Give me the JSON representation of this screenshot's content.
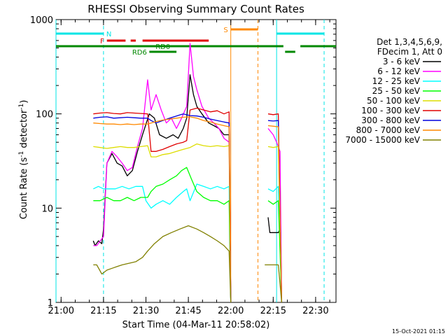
{
  "chart_data": {
    "type": "line",
    "title": "RHESSI Observing Summary Count Rates",
    "xlabel": "Start Time (04-Mar-11 20:58:02)",
    "ylabel_main": "Count Rate (s",
    "ylabel_sup": "-1",
    "ylabel_rest": " detector",
    "ylabel_sup2": "-1",
    "ylabel_close": ")",
    "yscale": "log",
    "xlim_minutes": [
      20.97,
      22.62
    ],
    "ylim": [
      1,
      1000
    ],
    "x_ticks": [
      "21:00",
      "21:15",
      "21:30",
      "21:45",
      "22:00",
      "22:15",
      "22:30"
    ],
    "x_tick_hours": [
      21.0,
      21.25,
      21.5,
      21.75,
      22.0,
      22.25,
      22.5
    ],
    "y_ticks": [
      "1",
      "10",
      "100",
      "1000"
    ],
    "y_tick_values": [
      1,
      10,
      100,
      1000
    ],
    "footer_date": "15-Oct-2021 01:15",
    "legend": {
      "header1": "Det 1,3,4,5,6,9,",
      "header2": "FDecim 1, Att 0",
      "placement": "right"
    },
    "flags": [
      {
        "label": "N",
        "color": "#00e5e5",
        "segments": [
          [
            20.97,
            21.25
          ],
          [
            22.27,
            22.55
          ]
        ],
        "level": 1
      },
      {
        "label": "F",
        "color": "#e00000",
        "segments": [
          [
            21.27,
            21.38
          ],
          [
            21.41,
            21.44
          ],
          [
            21.48,
            21.87
          ]
        ],
        "level": 2
      },
      {
        "label": "S",
        "color": "#ff8800",
        "segments": [
          [
            22.0,
            22.16
          ]
        ],
        "level": 0
      },
      {
        "label": "RD0",
        "color": "#008800",
        "segments": [
          [
            20.97,
            22.31
          ],
          [
            22.41,
            22.62
          ]
        ],
        "level": 3
      },
      {
        "label": "RD6",
        "color": "#008800",
        "segments": [
          [
            21.52,
            21.68
          ],
          [
            22.32,
            22.38
          ]
        ],
        "level": 4
      }
    ],
    "vlines": [
      {
        "x": 20.97,
        "color": "#00e5e5",
        "dashed": false
      },
      {
        "x": 21.25,
        "color": "#00e5e5",
        "dashed": true
      },
      {
        "x": 22.0,
        "color": "#ff8800",
        "dashed": false
      },
      {
        "x": 22.16,
        "color": "#ff8800",
        "dashed": true
      },
      {
        "x": 22.27,
        "color": "#00e5e5",
        "dashed": false
      },
      {
        "x": 22.55,
        "color": "#00e5e5",
        "dashed": true
      }
    ],
    "series": [
      {
        "name": "3 - 6 keV",
        "color": "#000000",
        "points": [
          [
            21.19,
            4.5
          ],
          [
            21.2,
            4
          ],
          [
            21.22,
            4.5
          ],
          [
            21.24,
            4.2
          ],
          [
            21.25,
            6
          ],
          [
            21.27,
            30
          ],
          [
            21.3,
            38
          ],
          [
            21.33,
            30
          ],
          [
            21.36,
            28
          ],
          [
            21.39,
            22
          ],
          [
            21.42,
            25
          ],
          [
            21.45,
            40
          ],
          [
            21.48,
            60
          ],
          [
            21.52,
            100
          ],
          [
            21.55,
            90
          ],
          [
            21.58,
            60
          ],
          [
            21.62,
            55
          ],
          [
            21.66,
            60
          ],
          [
            21.69,
            55
          ],
          [
            21.72,
            70
          ],
          [
            21.74,
            90
          ],
          [
            21.76,
            260
          ],
          [
            21.78,
            160
          ],
          [
            21.8,
            120
          ],
          [
            21.83,
            100
          ],
          [
            21.87,
            80
          ],
          [
            21.9,
            75
          ],
          [
            21.93,
            70
          ],
          [
            21.96,
            60
          ],
          [
            21.99,
            60
          ],
          [
            22.0,
            1
          ],
          null,
          [
            22.22,
            8
          ],
          [
            22.23,
            5.5
          ],
          [
            22.26,
            5.5
          ],
          [
            22.28,
            5.5
          ],
          [
            22.29,
            6
          ],
          [
            22.3,
            1
          ]
        ]
      },
      {
        "name": "6 - 12 keV",
        "color": "#ff00ff",
        "points": [
          [
            21.19,
            4
          ],
          [
            21.21,
            4
          ],
          [
            21.25,
            5
          ],
          [
            21.27,
            30
          ],
          [
            21.3,
            40
          ],
          [
            21.33,
            35
          ],
          [
            21.36,
            30
          ],
          [
            21.39,
            25
          ],
          [
            21.42,
            27
          ],
          [
            21.45,
            45
          ],
          [
            21.48,
            70
          ],
          [
            21.51,
            230
          ],
          [
            21.53,
            110
          ],
          [
            21.56,
            160
          ],
          [
            21.59,
            110
          ],
          [
            21.62,
            80
          ],
          [
            21.65,
            90
          ],
          [
            21.68,
            70
          ],
          [
            21.71,
            90
          ],
          [
            21.74,
            120
          ],
          [
            21.76,
            560
          ],
          [
            21.78,
            250
          ],
          [
            21.8,
            180
          ],
          [
            21.83,
            120
          ],
          [
            21.87,
            90
          ],
          [
            21.9,
            80
          ],
          [
            21.93,
            70
          ],
          [
            21.96,
            55
          ],
          [
            21.99,
            50
          ],
          [
            22.0,
            1
          ],
          null,
          [
            22.22,
            70
          ],
          [
            22.25,
            60
          ],
          [
            22.27,
            50
          ],
          [
            22.29,
            40
          ],
          [
            22.3,
            1
          ]
        ]
      },
      {
        "name": "12 - 25 keV",
        "color": "#00ffff",
        "points": [
          [
            21.19,
            16
          ],
          [
            21.22,
            17
          ],
          [
            21.25,
            16
          ],
          [
            21.28,
            16
          ],
          [
            21.32,
            16
          ],
          [
            21.36,
            17
          ],
          [
            21.4,
            16
          ],
          [
            21.44,
            17
          ],
          [
            21.48,
            17
          ],
          [
            21.5,
            12
          ],
          [
            21.53,
            10
          ],
          [
            21.56,
            11
          ],
          [
            21.6,
            12
          ],
          [
            21.64,
            11
          ],
          [
            21.68,
            13
          ],
          [
            21.72,
            15
          ],
          [
            21.74,
            16
          ],
          [
            21.76,
            12
          ],
          [
            21.8,
            18
          ],
          [
            21.84,
            17
          ],
          [
            21.88,
            16
          ],
          [
            21.92,
            17
          ],
          [
            21.96,
            16
          ],
          [
            21.99,
            17
          ],
          [
            22.0,
            1
          ],
          null,
          [
            22.22,
            16
          ],
          [
            22.25,
            15
          ],
          [
            22.28,
            17
          ],
          [
            22.3,
            1
          ]
        ]
      },
      {
        "name": "25 - 50 keV",
        "color": "#00ff00",
        "points": [
          [
            21.19,
            12
          ],
          [
            21.23,
            12
          ],
          [
            21.27,
            13
          ],
          [
            21.31,
            12
          ],
          [
            21.35,
            12
          ],
          [
            21.39,
            13
          ],
          [
            21.43,
            12
          ],
          [
            21.47,
            13
          ],
          [
            21.51,
            13
          ],
          [
            21.53,
            15
          ],
          [
            21.56,
            17
          ],
          [
            21.6,
            18
          ],
          [
            21.64,
            20
          ],
          [
            21.68,
            22
          ],
          [
            21.71,
            25
          ],
          [
            21.74,
            27
          ],
          [
            21.77,
            20
          ],
          [
            21.8,
            15
          ],
          [
            21.84,
            13
          ],
          [
            21.88,
            12
          ],
          [
            21.92,
            12
          ],
          [
            21.96,
            11
          ],
          [
            21.99,
            12
          ],
          [
            22.0,
            1
          ],
          null,
          [
            22.22,
            12
          ],
          [
            22.25,
            11
          ],
          [
            22.28,
            12
          ],
          [
            22.3,
            1
          ]
        ]
      },
      {
        "name": "50 - 100 keV",
        "color": "#dddd00",
        "points": [
          [
            21.19,
            45
          ],
          [
            21.23,
            44
          ],
          [
            21.27,
            43
          ],
          [
            21.31,
            44
          ],
          [
            21.35,
            45
          ],
          [
            21.39,
            44
          ],
          [
            21.43,
            44
          ],
          [
            21.47,
            45
          ],
          [
            21.51,
            46
          ],
          [
            21.53,
            35
          ],
          [
            21.56,
            35
          ],
          [
            21.6,
            37
          ],
          [
            21.64,
            38
          ],
          [
            21.68,
            40
          ],
          [
            21.72,
            42
          ],
          [
            21.76,
            44
          ],
          [
            21.8,
            48
          ],
          [
            21.84,
            46
          ],
          [
            21.88,
            45
          ],
          [
            21.92,
            46
          ],
          [
            21.96,
            45
          ],
          [
            21.99,
            46
          ],
          [
            22.0,
            1
          ],
          null,
          [
            22.22,
            45
          ],
          [
            22.25,
            44
          ],
          [
            22.28,
            45
          ],
          [
            22.3,
            1
          ]
        ]
      },
      {
        "name": "100 - 300 keV",
        "color": "#e00000",
        "points": [
          [
            21.19,
            100
          ],
          [
            21.23,
            102
          ],
          [
            21.27,
            103
          ],
          [
            21.31,
            101
          ],
          [
            21.35,
            100
          ],
          [
            21.39,
            103
          ],
          [
            21.43,
            102
          ],
          [
            21.47,
            101
          ],
          [
            21.51,
            100
          ],
          [
            21.53,
            40
          ],
          [
            21.56,
            40
          ],
          [
            21.6,
            42
          ],
          [
            21.64,
            45
          ],
          [
            21.68,
            48
          ],
          [
            21.72,
            50
          ],
          [
            21.74,
            52
          ],
          [
            21.76,
            110
          ],
          [
            21.8,
            115
          ],
          [
            21.84,
            110
          ],
          [
            21.88,
            105
          ],
          [
            21.92,
            108
          ],
          [
            21.96,
            100
          ],
          [
            21.99,
            105
          ],
          [
            22.0,
            1
          ],
          null,
          [
            22.22,
            100
          ],
          [
            22.25,
            98
          ],
          [
            22.28,
            100
          ],
          [
            22.3,
            1
          ]
        ]
      },
      {
        "name": "300 - 800 keV",
        "color": "#0000dd",
        "points": [
          [
            21.19,
            90
          ],
          [
            21.23,
            92
          ],
          [
            21.27,
            93
          ],
          [
            21.31,
            90
          ],
          [
            21.35,
            91
          ],
          [
            21.39,
            92
          ],
          [
            21.43,
            91
          ],
          [
            21.47,
            90
          ],
          [
            21.51,
            90
          ],
          [
            21.53,
            85
          ],
          [
            21.56,
            80
          ],
          [
            21.6,
            85
          ],
          [
            21.64,
            90
          ],
          [
            21.68,
            95
          ],
          [
            21.72,
            100
          ],
          [
            21.76,
            96
          ],
          [
            21.8,
            95
          ],
          [
            21.84,
            92
          ],
          [
            21.88,
            88
          ],
          [
            21.92,
            85
          ],
          [
            21.96,
            82
          ],
          [
            21.99,
            80
          ],
          [
            22.0,
            1
          ],
          null,
          [
            22.22,
            85
          ],
          [
            22.25,
            84
          ],
          [
            22.28,
            85
          ],
          [
            22.3,
            1
          ]
        ]
      },
      {
        "name": "800 - 7000 keV",
        "color": "#ff8800",
        "points": [
          [
            21.19,
            80
          ],
          [
            21.23,
            79
          ],
          [
            21.27,
            78
          ],
          [
            21.31,
            78
          ],
          [
            21.35,
            77
          ],
          [
            21.39,
            78
          ],
          [
            21.43,
            77
          ],
          [
            21.47,
            78
          ],
          [
            21.51,
            78
          ],
          [
            21.53,
            80
          ],
          [
            21.56,
            83
          ],
          [
            21.6,
            86
          ],
          [
            21.64,
            88
          ],
          [
            21.68,
            90
          ],
          [
            21.72,
            92
          ],
          [
            21.76,
            93
          ],
          [
            21.8,
            90
          ],
          [
            21.84,
            85
          ],
          [
            21.88,
            82
          ],
          [
            21.92,
            78
          ],
          [
            21.96,
            75
          ],
          [
            21.99,
            73
          ],
          [
            22.0,
            1
          ],
          null,
          [
            22.22,
            75
          ],
          [
            22.25,
            74
          ],
          [
            22.28,
            73
          ],
          [
            22.3,
            1
          ]
        ]
      },
      {
        "name": "7000 - 15000 keV",
        "color": "#808000",
        "points": [
          [
            21.19,
            2.5
          ],
          [
            21.21,
            2.5
          ],
          [
            21.24,
            2
          ],
          [
            21.27,
            2.2
          ],
          [
            21.3,
            2.3
          ],
          [
            21.33,
            2.4
          ],
          [
            21.36,
            2.5
          ],
          [
            21.4,
            2.6
          ],
          [
            21.44,
            2.7
          ],
          [
            21.48,
            3
          ],
          [
            21.51,
            3.5
          ],
          [
            21.55,
            4.2
          ],
          [
            21.6,
            5
          ],
          [
            21.65,
            5.5
          ],
          [
            21.7,
            6
          ],
          [
            21.75,
            6.5
          ],
          [
            21.8,
            6
          ],
          [
            21.84,
            5.5
          ],
          [
            21.88,
            5
          ],
          [
            21.92,
            4.5
          ],
          [
            21.96,
            4
          ],
          [
            21.99,
            3.5
          ],
          [
            22.0,
            1
          ],
          null,
          [
            22.2,
            2.5
          ],
          [
            22.24,
            2.5
          ],
          [
            22.28,
            2.5
          ],
          [
            22.3,
            1
          ]
        ]
      }
    ]
  }
}
